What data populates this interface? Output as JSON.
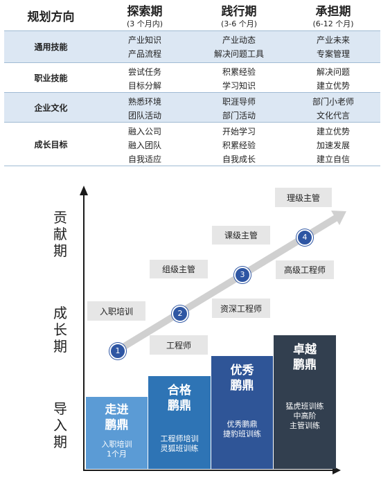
{
  "table": {
    "header": {
      "direction": "规划方向",
      "phases": [
        {
          "title": "探索期",
          "period": "(3 个月内)"
        },
        {
          "title": "践行期",
          "period": "(3-6 个月)"
        },
        {
          "title": "承担期",
          "period": "(6-12 个月)"
        }
      ]
    },
    "rows": [
      {
        "category": "通用技能",
        "cells": [
          [
            "产业知识",
            "产品流程"
          ],
          [
            "产业动态",
            "解决问题工具"
          ],
          [
            "产业未来",
            "专案管理"
          ]
        ]
      },
      {
        "category": "职业技能",
        "cells": [
          [
            "尝试任务",
            "目标分解"
          ],
          [
            "积累经验",
            "学习知识"
          ],
          [
            "解决问题",
            "建立优势"
          ]
        ]
      },
      {
        "category": "企业文化",
        "cells": [
          [
            "熟悉环境",
            "团队活动"
          ],
          [
            "职涯导师",
            "部门活动"
          ],
          [
            "部门小老师",
            "文化代言"
          ]
        ]
      },
      {
        "category": "成长目标",
        "cells": [
          [
            "融入公司",
            "融入团队",
            "自我适应"
          ],
          [
            "开始学习",
            "积累经验",
            "自我成长"
          ],
          [
            "建立优势",
            "加速发展",
            "建立自信"
          ]
        ]
      }
    ]
  },
  "diagram": {
    "y_labels": [
      "贡献期",
      "成长期",
      "导入期"
    ],
    "roles": [
      "理级主管",
      "课级主管",
      "组级主管",
      "高级工程师",
      "入职培训",
      "资深工程师",
      "工程师"
    ],
    "steps": [
      "1",
      "2",
      "3",
      "4"
    ],
    "stages": [
      {
        "title_1": "走进",
        "title_2": "鹏鼎",
        "desc": [
          "入职培训",
          "1个月"
        ]
      },
      {
        "title_1": "合格",
        "title_2": "鹏鼎",
        "desc": [
          "工程师培训",
          "灵狐班训练"
        ]
      },
      {
        "title_1": "优秀",
        "title_2": "鹏鼎",
        "desc": [
          "优秀鹏鼎",
          "捷豹班训练"
        ]
      },
      {
        "title_1": "卓越",
        "title_2": "鹏鼎",
        "desc": [
          "猛虎班训练",
          "中高阶",
          "主管训练"
        ]
      }
    ],
    "colors": {
      "stage1": "#5b9bd5",
      "stage2": "#2e74b5",
      "stage3": "#2f5597",
      "stage4": "#323f4f",
      "step_circle": "#2e56a3",
      "role_box": "#e6e6e6",
      "row_shade": "#dce7f3"
    }
  }
}
